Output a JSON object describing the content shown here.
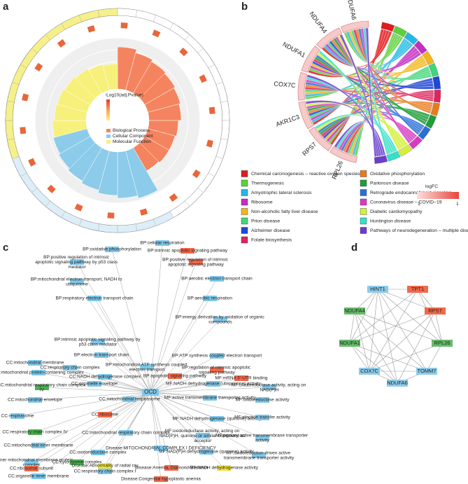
{
  "panel_labels": [
    "a",
    "b",
    "c",
    "d"
  ],
  "go_circle": {
    "scale_title": "-Log10(adj.Pvalue)",
    "categories": [
      {
        "name": "Biological Process",
        "color": "#f4845f"
      },
      {
        "name": "Cellular Component",
        "color": "#8ccbea"
      },
      {
        "name": "Molecular Function",
        "color": "#f7f07a"
      }
    ]
  },
  "chord": {
    "genes": [
      "RPL26",
      "RPS7",
      "AKR1C3",
      "COX7C",
      "NDUFA1",
      "NDUFA4",
      "NDUFA6"
    ],
    "pathways": [
      {
        "name": "Chemical carcinogenesis – reactive oxygen species",
        "color": "#e31a1c"
      },
      {
        "name": "Thermogenesis",
        "color": "#5bd13a"
      },
      {
        "name": "Amyotrophic lateral sclerosis",
        "color": "#22b8e6"
      },
      {
        "name": "Ribosome",
        "color": "#c42ec4"
      },
      {
        "name": "Non-alcoholic fatty liver disease",
        "color": "#f2b61c"
      },
      {
        "name": "Prion disease",
        "color": "#3fd67a"
      },
      {
        "name": "Alzheimer disease",
        "color": "#2147d6"
      },
      {
        "name": "Folate biosynthesis",
        "color": "#e0245d"
      },
      {
        "name": "Oxidative phosphorylation",
        "color": "#ea7a1e"
      },
      {
        "name": "Parkinson disease",
        "color": "#1f9e3a"
      },
      {
        "name": "Retrograde endocannabinoid signaling",
        "color": "#2b6fd6"
      },
      {
        "name": "Coronavirus disease – COVID−19",
        "color": "#d63ac2"
      },
      {
        "name": "Diabetic cardiomyopathy",
        "color": "#d6f03a"
      },
      {
        "name": "Huntington disease",
        "color": "#35e0c8"
      },
      {
        "name": "Pathways of neurodegeneration – multiple diseases",
        "color": "#6a3dd0"
      }
    ],
    "logfc_title": "logFC",
    "logfc_ticks": [
      "1",
      "1"
    ]
  },
  "network_c": {
    "center": "OCD",
    "center_color": "#7ec8ea",
    "nodes": [
      {
        "label": "BP:cellular respiration",
        "color": "#7ec8ea"
      },
      {
        "label": "BP:oxidative phosphorylation",
        "color": "#7ec8ea"
      },
      {
        "label": "BP:intrinsic apoptotic signaling pathway",
        "color": "#f06a4a"
      },
      {
        "label": "BP:positive regulation of intrinsic apoptotic signaling pathway by p53 class mediator",
        "color": "#7ec8ea"
      },
      {
        "label": "BP:positive regulation of intrinsic apoptotic signaling pathway",
        "color": "#f06a4a"
      },
      {
        "label": "BP:mitochondrial electron transport, NADH to ubiquinone",
        "color": "#7ec8ea"
      },
      {
        "label": "BP:aerobic electron transport chain",
        "color": "#7ec8ea"
      },
      {
        "label": "BP:respiratory electron transport chain",
        "color": "#7ec8ea"
      },
      {
        "label": "BP:aerobic respiration",
        "color": "#7ec8ea"
      },
      {
        "label": "BP:energy derivation by oxidation of organic compounds",
        "color": "#7ec8ea"
      },
      {
        "label": "BP:intrinsic apoptotic signaling pathway by p53 class mediator",
        "color": "#7ec8ea"
      },
      {
        "label": "BP:electron transport chain",
        "color": "#7ec8ea"
      },
      {
        "label": "BP:ATP synthesis coupled electron transport",
        "color": "#7ec8ea"
      },
      {
        "label": "CC:mitochondrial membrane",
        "color": "#7ec8ea"
      },
      {
        "label": "CC:respiratory chain complex",
        "color": "#7ec8ea"
      },
      {
        "label": "BP:mitochondrial ATP synthesis coupled electron transport",
        "color": "#7ec8ea"
      },
      {
        "label": "BP:regulation of intrinsic apoptotic signaling pathway",
        "color": "#f06a4a"
      },
      {
        "label": "CC:mitochondrial protein-containing complex",
        "color": "#7ec8ea"
      },
      {
        "label": "CC:NADH dehydrogenase complex",
        "color": "#7ec8ea"
      },
      {
        "label": "BP:apoptotic signaling pathway",
        "color": "#f06a4a"
      },
      {
        "label": "MF:mRNA 5'-UTR binding",
        "color": "#f06a4a"
      },
      {
        "label": "CC:mitochondrial respiratory chain complex IV",
        "color": "#4caf50"
      },
      {
        "label": "CC:organelle envelope",
        "color": "#7ec8ea"
      },
      {
        "label": "MF:NADH dehydrogenase (ubiquinone) activity",
        "color": "#7ec8ea"
      },
      {
        "label": "MF:oxidoreductase activity, acting on NAD(P)H",
        "color": "#7ec8ea"
      },
      {
        "label": "MF:active transmembrane transporter activity",
        "color": "#7ec8ea"
      },
      {
        "label": "CC:mitochondrial envelope",
        "color": "#7ec8ea"
      },
      {
        "label": "CC:mitochondrial respirasome",
        "color": "#7ec8ea"
      },
      {
        "label": "MF:oxidoreductase activity",
        "color": "#7ec8ea"
      },
      {
        "label": "CC:ribosome",
        "color": "#f06a4a"
      },
      {
        "label": "MF:NADH dehydrogenase (quinone) activity",
        "color": "#7ec8ea"
      },
      {
        "label": "CC:respirasome",
        "color": "#7ec8ea"
      },
      {
        "label": "MF:electron transfer activity",
        "color": "#7ec8ea"
      },
      {
        "label": "CC:respiratory chain complex IV",
        "color": "#4caf50"
      },
      {
        "label": "CC:mitochondrial respiratory chain complex",
        "color": "#7ec8ea"
      },
      {
        "label": "MF:oxidoreductase activity, acting on NAD(P)H, quinone or similar compound as acceptor",
        "color": "#7ec8ea"
      },
      {
        "label": "MF:primary active transmembrane transporter activity",
        "color": "#7ec8ea"
      },
      {
        "label": "CC:mitochondrial inner membrane",
        "color": "#7ec8ea"
      },
      {
        "label": "Disease:MITOCHONDRIAL COMPLEX I DEFICIENCY",
        "color": "#7ec8ea"
      },
      {
        "label": "MF:NAD(P)H dehydrogenase (quinone) activity",
        "color": "#7ec8ea"
      },
      {
        "label": "CC:oxidoreductase complex",
        "color": "#7ec8ea"
      },
      {
        "label": "MF:oxidoreduction-driven active transmembrane transporter activity",
        "color": "#7ec8ea"
      },
      {
        "label": "CC:inner mitochondrial membrane protein complex",
        "color": "#7ec8ea"
      },
      {
        "label": "CC:cytochrome complex",
        "color": "#4caf50"
      },
      {
        "label": "Disease:Abnormality of radial ray",
        "color": "#f2e53a"
      },
      {
        "label": "MF:NADH dehydrogenase activity",
        "color": "#f2e53a"
      },
      {
        "label": "CC:ribosomal subunit",
        "color": "#f06a4a"
      },
      {
        "label": "CC:respiratory chain complex I",
        "color": "#7ec8ea"
      },
      {
        "label": "Disease:Anemia, Diamond-Blackfan",
        "color": "#f06a4a"
      },
      {
        "label": "CC:organelle inner membrane",
        "color": "#7ec8ea"
      },
      {
        "label": "Disease:Congenital hypoplastic anemia",
        "color": "#f06a4a"
      }
    ]
  },
  "network_d": {
    "nodes": [
      {
        "label": "HINT1",
        "color": "#8ccbea"
      },
      {
        "label": "TPT1",
        "color": "#f06a4a"
      },
      {
        "label": "NDUFA4",
        "color": "#66bb6a"
      },
      {
        "label": "RPS7",
        "color": "#f06a4a"
      },
      {
        "label": "NDUFA1",
        "color": "#66bb6a"
      },
      {
        "label": "RPL26",
        "color": "#66bb6a"
      },
      {
        "label": "COX7C",
        "color": "#8ccbea"
      },
      {
        "label": "TOMM7",
        "color": "#8ccbea"
      },
      {
        "label": "NDUFA6",
        "color": "#8ccbea"
      }
    ]
  }
}
